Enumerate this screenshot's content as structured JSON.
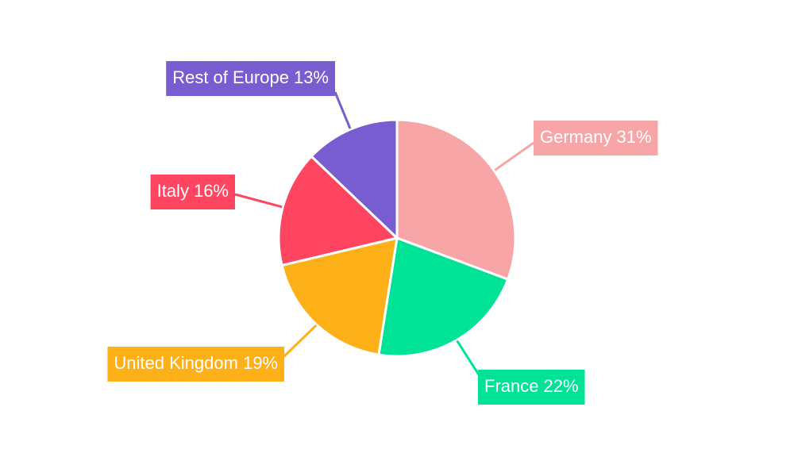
{
  "chart_data": {
    "type": "pie",
    "categories": [
      "Germany",
      "France",
      "United Kingdom",
      "Italy",
      "Rest of Europe"
    ],
    "values": [
      31,
      22,
      19,
      16,
      13
    ],
    "value_labels": [
      "31%",
      "22%",
      "19%",
      "16%",
      "13%"
    ],
    "colors": [
      "#f8a5a8",
      "#00e396",
      "#feb019",
      "#ff4560",
      "#775dd0"
    ]
  }
}
